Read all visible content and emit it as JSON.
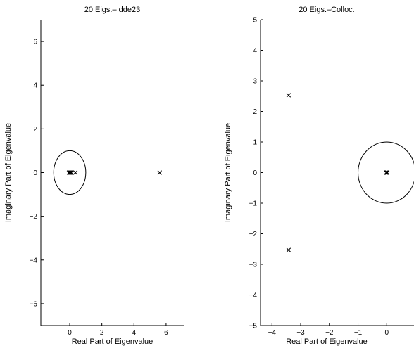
{
  "chart_data": [
    {
      "type": "scatter",
      "title": "20 Eigs.– dde23",
      "xlabel": "Real Part of Eigenvalue",
      "ylabel": "Imaginary Part of Eigenvalue",
      "xlim": [
        -1.8,
        7.1
      ],
      "ylim": [
        -7.0,
        7.0
      ],
      "xticks": [
        0,
        2,
        4,
        6
      ],
      "xticklabels": [
        "0",
        "2",
        "4",
        "6"
      ],
      "yticks": [
        -6,
        -4,
        -2,
        0,
        2,
        4,
        6
      ],
      "yticklabels": [
        "−6",
        "−4",
        "−2",
        "0",
        "2",
        "4",
        "6"
      ],
      "grid": false,
      "legend": "none",
      "unit_circle": {
        "center": [
          0,
          0
        ],
        "radius": 1
      },
      "marker": "x",
      "points": [
        {
          "x": -0.05,
          "y": 0
        },
        {
          "x": 0.0,
          "y": 0
        },
        {
          "x": 0.05,
          "y": 0
        },
        {
          "x": 0.1,
          "y": 0
        },
        {
          "x": 0.35,
          "y": 0
        },
        {
          "x": 5.6,
          "y": 0
        }
      ]
    },
    {
      "type": "scatter",
      "title": "20 Eigs.–Colloc.",
      "xlabel": "Real Part of Eigenvalue",
      "ylabel": "Imaginary Part of Eigenvalue",
      "xlim": [
        -4.4,
        1.0
      ],
      "ylim": [
        -5.0,
        5.0
      ],
      "xticks": [
        -4,
        -3,
        -2,
        -1,
        0
      ],
      "xticklabels": [
        "−4",
        "−3",
        "−2",
        "−1",
        "0"
      ],
      "yticks": [
        -5,
        -4,
        -3,
        -2,
        -1,
        0,
        1,
        2,
        3,
        4,
        5
      ],
      "yticklabels": [
        "−5",
        "−4",
        "−3",
        "−2",
        "−1",
        "0",
        "1",
        "2",
        "3",
        "4",
        "5"
      ],
      "grid": false,
      "legend": "none",
      "unit_circle": {
        "center": [
          0,
          0
        ],
        "radius": 1
      },
      "marker": "x",
      "points": [
        {
          "x": -3.42,
          "y": 2.53
        },
        {
          "x": -3.42,
          "y": -2.53
        },
        {
          "x": -0.02,
          "y": 0
        },
        {
          "x": 0.0,
          "y": 0
        },
        {
          "x": 0.02,
          "y": 0
        }
      ]
    }
  ]
}
